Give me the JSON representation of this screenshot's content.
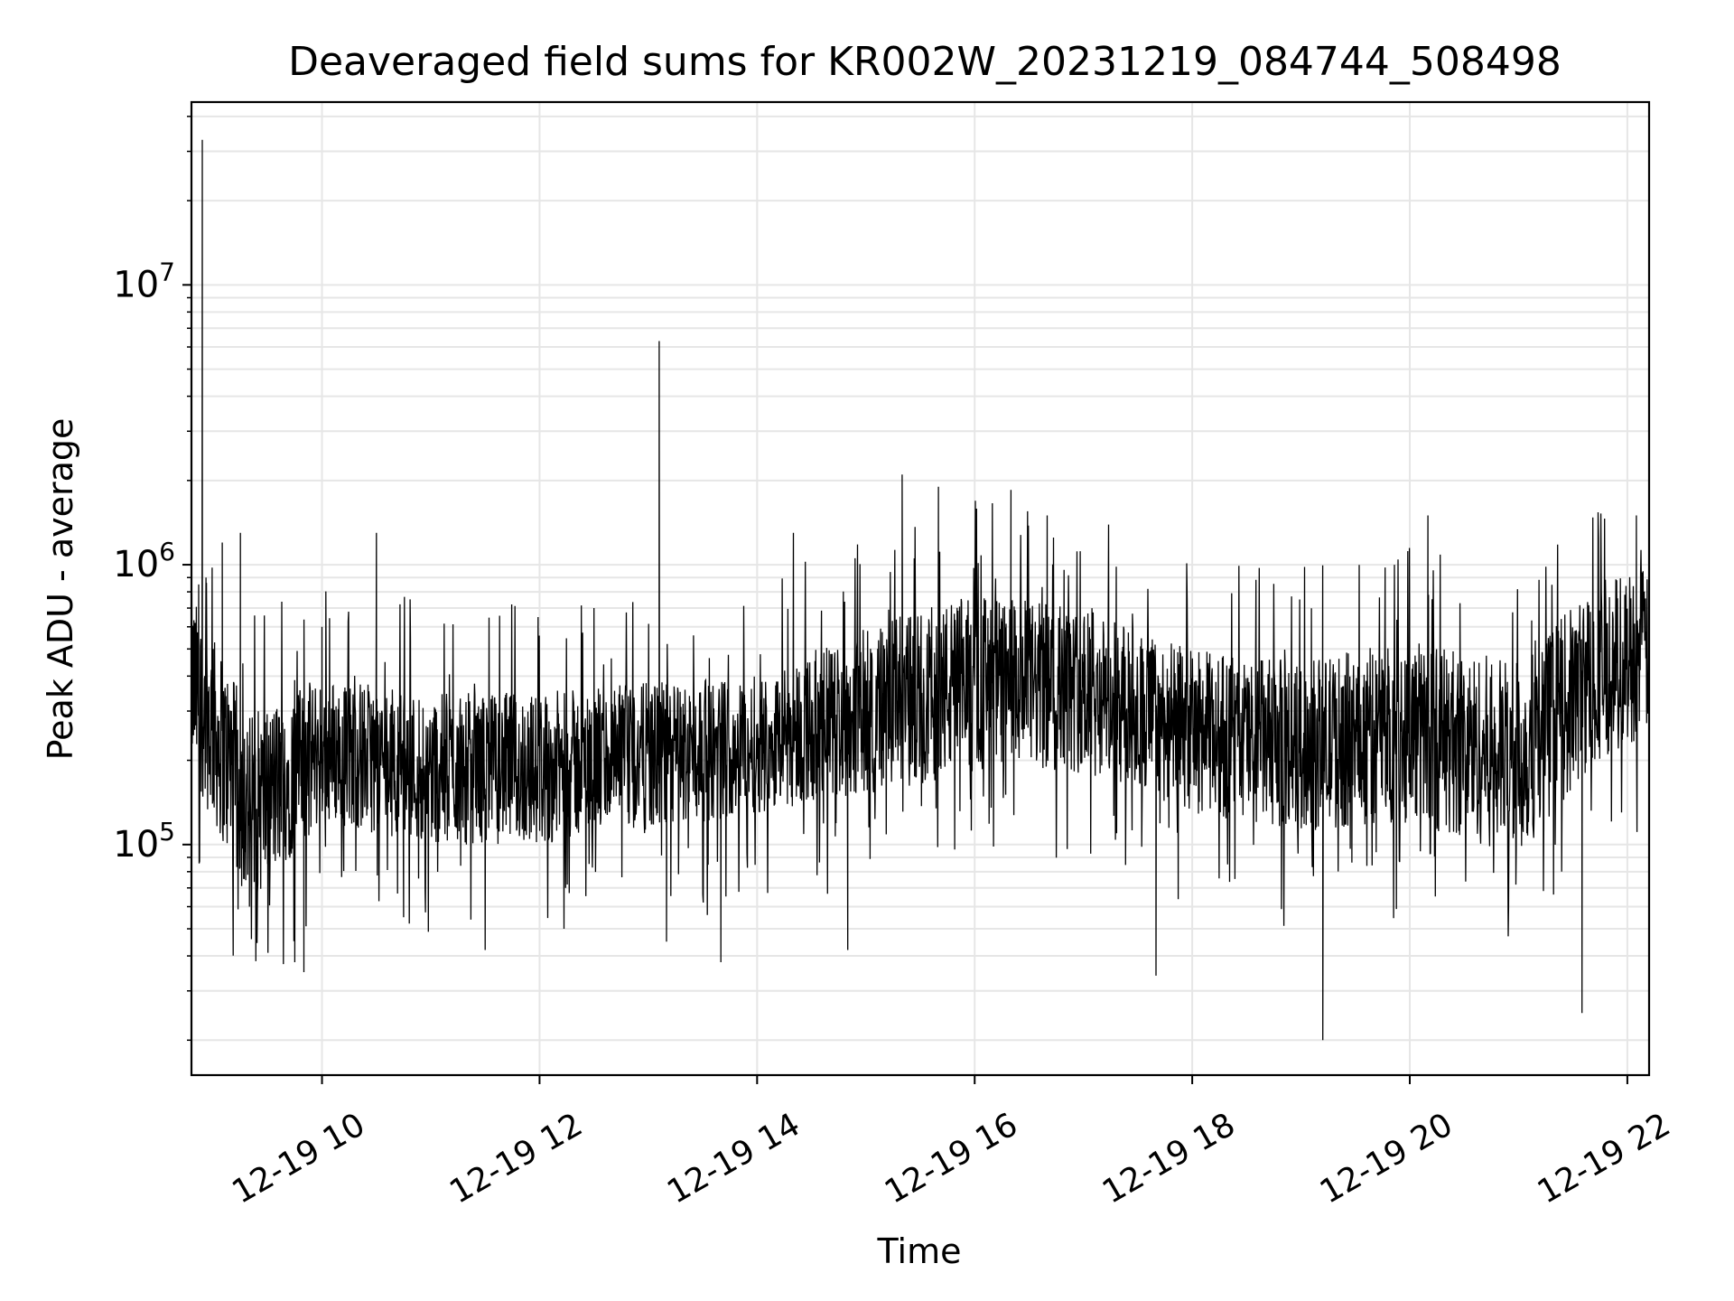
{
  "chart_data": {
    "type": "line",
    "title": "Deaveraged field sums for KR002W_20231219_084744_508498",
    "xlabel": "Time",
    "ylabel": "Peak ADU - average",
    "y_scale": "log",
    "ylim": [
      15000,
      45000000
    ],
    "xlim": [
      "2023-12-19 08:48",
      "2023-12-19 22:12"
    ],
    "grid": true,
    "legend": "none",
    "line_color": "#000000",
    "grid_color": "#e6e6e6",
    "x_ticks": [
      {
        "t": "2023-12-19 10:00",
        "label": "12-19 10"
      },
      {
        "t": "2023-12-19 12:00",
        "label": "12-19 12"
      },
      {
        "t": "2023-12-19 14:00",
        "label": "12-19 14"
      },
      {
        "t": "2023-12-19 16:00",
        "label": "12-19 16"
      },
      {
        "t": "2023-12-19 18:00",
        "label": "12-19 18"
      },
      {
        "t": "2023-12-19 20:00",
        "label": "12-19 20"
      },
      {
        "t": "2023-12-19 22:00",
        "label": "12-19 22"
      }
    ],
    "y_ticks": [
      {
        "value": 100000,
        "base": "10",
        "exp": "5"
      },
      {
        "value": 1000000,
        "base": "10",
        "exp": "6"
      },
      {
        "value": 10000000,
        "base": "10",
        "exp": "7"
      }
    ],
    "series": [
      {
        "points": [
          [
            "2023-12-19 08:48",
            450000
          ],
          [
            "2023-12-19 08:52",
            850000
          ],
          [
            "2023-12-19 08:54",
            33000000
          ],
          [
            "2023-12-19 08:56",
            900000
          ],
          [
            "2023-12-19 09:00",
            500000
          ],
          [
            "2023-12-19 09:05",
            1200000
          ],
          [
            "2023-12-19 09:10",
            300000
          ],
          [
            "2023-12-19 09:15",
            1300000
          ],
          [
            "2023-12-19 09:20",
            60000
          ],
          [
            "2023-12-19 09:30",
            170000
          ],
          [
            "2023-12-19 09:45",
            38000
          ],
          [
            "2023-12-19 09:50",
            35000
          ],
          [
            "2023-12-19 10:00",
            600000
          ],
          [
            "2023-12-19 10:30",
            1300000
          ],
          [
            "2023-12-19 10:45",
            55000
          ],
          [
            "2023-12-19 11:30",
            42000
          ],
          [
            "2023-12-19 12:00",
            200000
          ],
          [
            "2023-12-19 12:30",
            700000
          ],
          [
            "2023-12-19 13:00",
            250000
          ],
          [
            "2023-12-19 13:06",
            6300000
          ],
          [
            "2023-12-19 13:10",
            45000
          ],
          [
            "2023-12-19 13:40",
            38000
          ],
          [
            "2023-12-19 14:00",
            250000
          ],
          [
            "2023-12-19 14:20",
            1300000
          ],
          [
            "2023-12-19 14:50",
            42000
          ],
          [
            "2023-12-19 15:00",
            300000
          ],
          [
            "2023-12-19 15:20",
            2100000
          ],
          [
            "2023-12-19 15:40",
            1900000
          ],
          [
            "2023-12-19 16:00",
            400000
          ],
          [
            "2023-12-19 16:20",
            1850000
          ],
          [
            "2023-12-19 16:40",
            1500000
          ],
          [
            "2023-12-19 17:00",
            450000
          ],
          [
            "2023-12-19 17:30",
            250000
          ],
          [
            "2023-12-19 17:40",
            34000
          ],
          [
            "2023-12-19 18:00",
            350000
          ],
          [
            "2023-12-19 18:30",
            300000
          ],
          [
            "2023-12-19 19:00",
            250000
          ],
          [
            "2023-12-19 19:12",
            20000
          ],
          [
            "2023-12-19 19:30",
            280000
          ],
          [
            "2023-12-19 20:00",
            300000
          ],
          [
            "2023-12-19 20:10",
            1500000
          ],
          [
            "2023-12-19 20:30",
            300000
          ],
          [
            "2023-12-19 21:00",
            250000
          ],
          [
            "2023-12-19 21:30",
            300000
          ],
          [
            "2023-12-19 21:35",
            25000
          ],
          [
            "2023-12-19 21:50",
            300000
          ],
          [
            "2023-12-19 22:00",
            500000
          ],
          [
            "2023-12-19 22:05",
            1500000
          ],
          [
            "2023-12-19 22:12",
            600000
          ]
        ],
        "noise_band": [
          [
            "2023-12-19 08:48",
            180000,
            800000
          ],
          [
            "2023-12-19 09:20",
            60000,
            300000
          ],
          [
            "2023-12-19 10:00",
            120000,
            400000
          ],
          [
            "2023-12-19 11:00",
            100000,
            350000
          ],
          [
            "2023-12-19 12:00",
            100000,
            350000
          ],
          [
            "2023-12-19 13:00",
            110000,
            380000
          ],
          [
            "2023-12-19 14:00",
            130000,
            400000
          ],
          [
            "2023-12-19 15:00",
            150000,
            600000
          ],
          [
            "2023-12-19 16:00",
            180000,
            800000
          ],
          [
            "2023-12-19 17:00",
            180000,
            700000
          ],
          [
            "2023-12-19 18:00",
            130000,
            500000
          ],
          [
            "2023-12-19 19:00",
            110000,
            450000
          ],
          [
            "2023-12-19 20:00",
            120000,
            550000
          ],
          [
            "2023-12-19 21:00",
            90000,
            450000
          ],
          [
            "2023-12-19 21:45",
            200000,
            900000
          ],
          [
            "2023-12-19 22:12",
            250000,
            1000000
          ]
        ]
      }
    ]
  }
}
